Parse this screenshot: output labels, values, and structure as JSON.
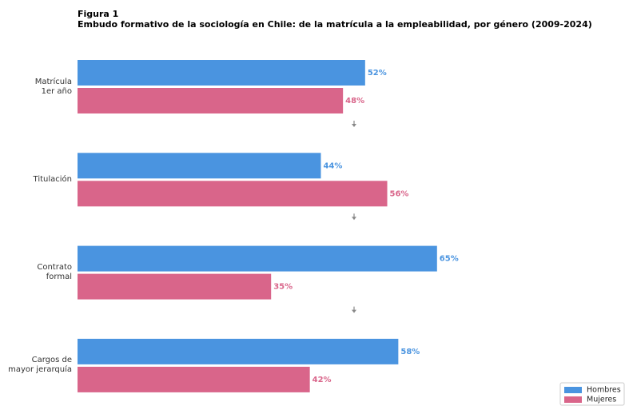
{
  "chart_data": {
    "type": "bar",
    "orientation": "horizontal",
    "title": "Figura 1",
    "subtitle": "Embudo formativo de la sociología en Chile: de la matrícula a la empleabilidad, por género (2009-2024)",
    "categories": [
      "Matrícula\n1er año",
      "Titulación",
      "Contrato\nformal",
      "Cargos de\nmayor jerarquía"
    ],
    "series": [
      {
        "name": "Hombres",
        "color": "#4a94e0",
        "values": [
          52,
          44,
          65,
          58
        ],
        "value_labels": [
          "52%",
          "44%",
          "65%",
          "58%"
        ]
      },
      {
        "name": "Mujeres",
        "color": "#d9658a",
        "values": [
          48,
          56,
          35,
          42
        ],
        "value_labels": [
          "48%",
          "56%",
          "35%",
          "42%"
        ]
      }
    ],
    "xlim": [
      0,
      100
    ],
    "legend": "lower right"
  }
}
